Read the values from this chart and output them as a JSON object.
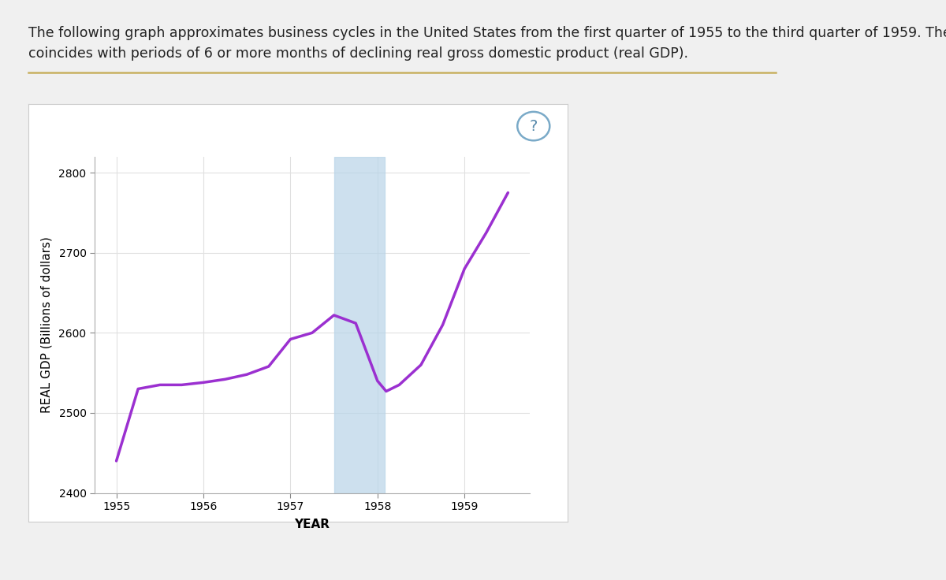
{
  "title_line1": "The following graph approximates business cycles in the United States from the first quarter of 1955 to the third quarter of 1959. The vertical blue bar",
  "title_line2": "coincides with periods of 6 or more months of declining real gross domestic product (real GDP).",
  "xlabel": "YEAR",
  "ylabel": "REAL GDP (Billions of dollars)",
  "xlim": [
    1954.75,
    1959.75
  ],
  "ylim": [
    2400,
    2820
  ],
  "yticks": [
    2400,
    2500,
    2600,
    2700,
    2800
  ],
  "xticks": [
    1955,
    1956,
    1957,
    1958,
    1959
  ],
  "line_color": "#9B30D0",
  "line_width": 2.5,
  "blue_bar_xmin": 1957.5,
  "blue_bar_xmax": 1958.08,
  "blue_bar_color": "#b8d4e8",
  "blue_bar_alpha": 0.7,
  "x_data": [
    1955.0,
    1955.25,
    1955.5,
    1955.75,
    1956.0,
    1956.25,
    1956.5,
    1956.75,
    1957.0,
    1957.25,
    1957.5,
    1957.75,
    1958.0,
    1958.1,
    1958.25,
    1958.5,
    1958.75,
    1959.0,
    1959.25,
    1959.5
  ],
  "y_data": [
    2440,
    2530,
    2535,
    2535,
    2538,
    2542,
    2548,
    2558,
    2592,
    2600,
    2622,
    2612,
    2540,
    2527,
    2535,
    2560,
    2610,
    2680,
    2725,
    2775
  ],
  "grid_color": "#e0e0e0",
  "bg_color": "#ffffff",
  "outer_bg": "#f0f0f0",
  "panel_bg": "#ffffff",
  "title_fontsize": 12.5,
  "axis_label_fontsize": 11,
  "tick_fontsize": 10,
  "gold_line_color": "#c8b060",
  "question_circle_color": "#7aaac8",
  "question_text_color": "#5588aa"
}
